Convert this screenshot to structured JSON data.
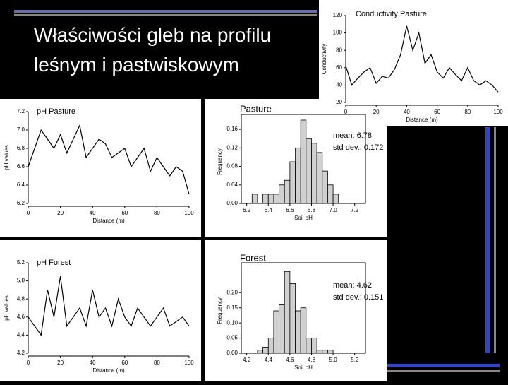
{
  "title": "Właściwości gleb na profilu leśnym i pastwiskowym",
  "chart_data": [
    {
      "type": "line",
      "title": "Conductivity Pasture",
      "x_label": "Distance (m)",
      "y_label": "Conductivity",
      "x": [
        0,
        4,
        8,
        12,
        16,
        20,
        24,
        28,
        32,
        36,
        40,
        44,
        48,
        52,
        56,
        60,
        64,
        68,
        72,
        76,
        80,
        84,
        88,
        92,
        96,
        100
      ],
      "values": [
        62,
        40,
        48,
        55,
        60,
        42,
        50,
        48,
        58,
        75,
        108,
        80,
        100,
        65,
        75,
        55,
        48,
        60,
        52,
        45,
        60,
        45,
        40,
        45,
        40,
        32
      ],
      "color": "#000000",
      "xlim": [
        0,
        100
      ],
      "xticks": [
        0,
        20,
        40,
        60,
        80,
        100
      ],
      "ylim": [
        20,
        120
      ],
      "yticks": [
        20,
        40,
        60,
        80,
        100,
        120
      ]
    },
    {
      "type": "line",
      "title": "pH Pasture",
      "x_label": "Distance (m)",
      "y_label": "pH values",
      "x": [
        0,
        4,
        8,
        12,
        16,
        20,
        24,
        28,
        32,
        36,
        40,
        44,
        48,
        52,
        56,
        60,
        64,
        68,
        72,
        76,
        80,
        84,
        88,
        92,
        96,
        100
      ],
      "values": [
        6.6,
        6.8,
        7.0,
        6.9,
        6.8,
        6.95,
        6.75,
        6.9,
        7.05,
        6.7,
        6.8,
        6.9,
        6.85,
        6.7,
        6.75,
        6.8,
        6.6,
        6.7,
        6.8,
        6.55,
        6.7,
        6.6,
        6.5,
        6.6,
        6.55,
        6.3
      ],
      "color": "#000000",
      "xlim": [
        0,
        100
      ],
      "xticks": [
        0,
        20,
        40,
        60,
        80,
        100
      ],
      "ylim": [
        6.2,
        7.2
      ],
      "yticks": [
        6.2,
        6.4,
        6.6,
        6.8,
        {
          "value": 7,
          "label": "7.0"
        },
        7.2
      ]
    },
    {
      "type": "histogram",
      "title": "Pasture",
      "x_label": "Soil pH",
      "y_label": "Frequency",
      "annotations": [
        "mean: 6.78",
        "std dev.: 0.172"
      ],
      "bins": [
        6.25,
        6.3,
        6.35,
        6.4,
        6.45,
        6.5,
        6.55,
        6.6,
        6.65,
        6.7,
        6.75,
        6.8,
        6.85,
        6.9,
        6.95,
        7.0,
        7.05,
        7.1,
        7.15,
        7.2
      ],
      "values": [
        0.02,
        0,
        0.02,
        0.02,
        0.02,
        0.04,
        0.05,
        0.09,
        0.12,
        0.18,
        0.14,
        0.13,
        0.11,
        0.07,
        0.04,
        0.02,
        0,
        0,
        0
      ],
      "color": "#d0d0d0",
      "xlim": [
        6.15,
        7.3
      ],
      "xticks": [
        6.2,
        6.4,
        6.6,
        6.8,
        {
          "value": 7,
          "label": "7.0"
        },
        7.2
      ],
      "ylim": [
        0,
        0.18
      ],
      "yticks": [
        {
          "value": 0,
          "label": "0.00"
        },
        0.04,
        0.08,
        0.12,
        0.16
      ]
    },
    {
      "type": "line",
      "title": "pH Forest",
      "x_label": "Distance (m)",
      "y_label": "pH values",
      "x": [
        0,
        4,
        8,
        12,
        16,
        20,
        24,
        28,
        32,
        36,
        40,
        44,
        48,
        52,
        56,
        60,
        64,
        68,
        72,
        76,
        80,
        84,
        88,
        92,
        96,
        100
      ],
      "values": [
        4.6,
        4.5,
        4.4,
        4.9,
        4.6,
        5.05,
        4.5,
        4.6,
        4.7,
        4.5,
        4.9,
        4.6,
        4.7,
        4.5,
        4.8,
        4.6,
        4.5,
        4.7,
        4.6,
        4.5,
        4.6,
        4.7,
        4.5,
        4.55,
        4.6,
        4.5
      ],
      "color": "#000000",
      "xlim": [
        0,
        100
      ],
      "xticks": [
        0,
        20,
        40,
        60,
        80,
        100
      ],
      "ylim": [
        4.2,
        5.2
      ],
      "yticks": [
        4.2,
        4.4,
        4.6,
        4.8,
        {
          "value": 5,
          "label": "5.0"
        },
        5.2
      ]
    },
    {
      "type": "histogram",
      "title": "Forest",
      "x_label": "Soil pH",
      "y_label": "Frequency",
      "annotations": [
        "mean: 4.62",
        "std dev.: 0.151"
      ],
      "bins": [
        4.3,
        4.35,
        4.4,
        4.45,
        4.5,
        4.55,
        4.6,
        4.65,
        4.7,
        4.75,
        4.8,
        4.85,
        4.9,
        4.95,
        5.0
      ],
      "values": [
        0.01,
        0.02,
        0.05,
        0.14,
        0.16,
        0.27,
        0.23,
        0.14,
        0.15,
        0.05,
        0.05,
        0.01,
        0.01,
        0.01
      ],
      "color": "#d0d0d0",
      "xlim": [
        4.15,
        5.3
      ],
      "xticks": [
        4.2,
        4.4,
        4.6,
        4.8,
        {
          "value": 5,
          "label": "5.0"
        },
        5.2
      ],
      "ylim": [
        0,
        0.28
      ],
      "yticks": [
        {
          "value": 0,
          "label": "0.00"
        },
        0.05,
        {
          "value": 0.1,
          "label": "0.10"
        },
        0.15,
        {
          "value": 0.2,
          "label": "0.20"
        }
      ]
    }
  ]
}
